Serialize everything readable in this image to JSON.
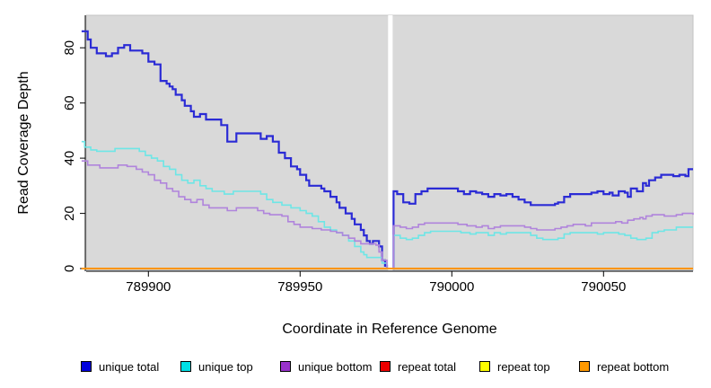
{
  "figure": {
    "background": "#FFFFFF",
    "plot_background": "#D9D9D9",
    "gap_band_color": "#FFFFFF",
    "axis_color": "#000000",
    "text_color": "#000000"
  },
  "chart_data": {
    "type": "line",
    "subtype": "step",
    "title": "",
    "xlabel": "Coordinate in Reference Genome",
    "ylabel": "Read Coverage Depth",
    "xlim": [
      789879.5,
      790079.5
    ],
    "ylim": [
      0,
      91.8
    ],
    "xticks": [
      789900,
      789950,
      790000,
      790050
    ],
    "yticks": [
      0,
      20,
      40,
      60,
      80
    ],
    "grid": false,
    "legend_position": "bottom",
    "gap_region": {
      "x_from": 789979,
      "x_to": 789980.5
    },
    "series": [
      {
        "name": "unique total",
        "color": "#2B2BD5",
        "legend_color": "#0000DC",
        "line_width": 2.2,
        "segments": [
          [
            [
              789878,
              86
            ],
            [
              789880,
              83
            ],
            [
              789881,
              80
            ],
            [
              789883,
              78
            ],
            [
              789886,
              77
            ],
            [
              789888,
              78
            ],
            [
              789890,
              80
            ],
            [
              789892,
              81
            ],
            [
              789894,
              79
            ],
            [
              789898,
              78
            ],
            [
              789900,
              75
            ],
            [
              789902,
              74
            ],
            [
              789904,
              68
            ],
            [
              789906,
              67
            ],
            [
              789907,
              66
            ],
            [
              789908,
              65
            ],
            [
              789909,
              63
            ],
            [
              789911,
              61
            ],
            [
              789912,
              59
            ],
            [
              789914,
              57
            ],
            [
              789915,
              55
            ],
            [
              789917,
              56
            ],
            [
              789919,
              54
            ],
            [
              789924,
              52
            ],
            [
              789926,
              46
            ],
            [
              789929,
              49
            ],
            [
              789937,
              47
            ],
            [
              789939,
              48
            ],
            [
              789941,
              46
            ],
            [
              789943,
              42
            ],
            [
              789945,
              40
            ],
            [
              789947,
              37
            ],
            [
              789949,
              36
            ],
            [
              789950,
              34
            ],
            [
              789952,
              32
            ],
            [
              789953,
              30
            ],
            [
              789957,
              29
            ],
            [
              789958,
              28
            ],
            [
              789960,
              26
            ],
            [
              789962,
              24
            ],
            [
              789963,
              22
            ],
            [
              789965,
              20
            ],
            [
              789967,
              18
            ],
            [
              789968,
              16
            ],
            [
              789970,
              14
            ],
            [
              789971,
              12
            ],
            [
              789972,
              10
            ],
            [
              789973,
              9
            ],
            [
              789974,
              10
            ],
            [
              789976,
              8
            ],
            [
              789977,
              3
            ],
            [
              789978,
              1
            ],
            [
              789978.6,
              0
            ]
          ],
          [
            [
              789980.6,
              0
            ],
            [
              789980.8,
              28
            ],
            [
              789982,
              27
            ],
            [
              789984,
              24
            ],
            [
              789986,
              23.5
            ],
            [
              789988,
              27
            ],
            [
              789990,
              28
            ],
            [
              789992,
              29
            ],
            [
              790002,
              28
            ],
            [
              790004,
              27
            ],
            [
              790006,
              28
            ],
            [
              790008,
              27.5
            ],
            [
              790010,
              27
            ],
            [
              790012,
              26
            ],
            [
              790014,
              27
            ],
            [
              790016,
              26.5
            ],
            [
              790018,
              27
            ],
            [
              790020,
              26
            ],
            [
              790022,
              25
            ],
            [
              790024,
              24
            ],
            [
              790026,
              23
            ],
            [
              790034,
              23.5
            ],
            [
              790035,
              24
            ],
            [
              790037,
              26
            ],
            [
              790039,
              27
            ],
            [
              790046,
              27.5
            ],
            [
              790048,
              28
            ],
            [
              790050,
              27
            ],
            [
              790052,
              27.5
            ],
            [
              790053,
              26.5
            ],
            [
              790055,
              28
            ],
            [
              790057,
              27.5
            ],
            [
              790058,
              26
            ],
            [
              790059,
              29
            ],
            [
              790061,
              28
            ],
            [
              790063,
              31
            ],
            [
              790064,
              30
            ],
            [
              790065,
              32
            ],
            [
              790067,
              33
            ],
            [
              790069,
              34
            ],
            [
              790073,
              33.5
            ],
            [
              790075,
              34
            ],
            [
              790077,
              33.5
            ],
            [
              790078,
              36
            ],
            [
              790079.5,
              36
            ]
          ]
        ]
      },
      {
        "name": "unique top",
        "color": "#6EE6E6",
        "legend_color": "#00E0E6",
        "line_width": 1.6,
        "segments": [
          [
            [
              789878,
              46
            ],
            [
              789879,
              44
            ],
            [
              789881,
              43
            ],
            [
              789883,
              42.5
            ],
            [
              789889,
              43.5
            ],
            [
              789897,
              42.5
            ],
            [
              789899,
              41
            ],
            [
              789901,
              40
            ],
            [
              789903,
              39
            ],
            [
              789905,
              37
            ],
            [
              789907,
              36
            ],
            [
              789909,
              34
            ],
            [
              789911,
              32
            ],
            [
              789913,
              31
            ],
            [
              789915,
              32
            ],
            [
              789917,
              30
            ],
            [
              789919,
              29
            ],
            [
              789921,
              28
            ],
            [
              789925,
              27
            ],
            [
              789928,
              28
            ],
            [
              789937,
              27
            ],
            [
              789939,
              25
            ],
            [
              789941,
              24
            ],
            [
              789944,
              23
            ],
            [
              789947,
              22
            ],
            [
              789950,
              21
            ],
            [
              789952,
              20
            ],
            [
              789954,
              19
            ],
            [
              789956,
              17
            ],
            [
              789958,
              15
            ],
            [
              789960,
              14
            ],
            [
              789962,
              13
            ],
            [
              789964,
              12
            ],
            [
              789966,
              10
            ],
            [
              789968,
              8
            ],
            [
              789970,
              6
            ],
            [
              789971,
              5
            ],
            [
              789972,
              4
            ],
            [
              789976,
              4
            ],
            [
              789977,
              2
            ],
            [
              789978.6,
              0
            ]
          ],
          [
            [
              789980.6,
              0
            ],
            [
              789980.8,
              12
            ],
            [
              789983,
              11
            ],
            [
              789985,
              10.5
            ],
            [
              789987,
              11
            ],
            [
              789989,
              12
            ],
            [
              789991,
              13
            ],
            [
              789993,
              13.5
            ],
            [
              790003,
              13
            ],
            [
              790006,
              12.5
            ],
            [
              790008,
              13
            ],
            [
              790012,
              12
            ],
            [
              790014,
              13
            ],
            [
              790016,
              12.5
            ],
            [
              790018,
              13
            ],
            [
              790026,
              12
            ],
            [
              790028,
              11
            ],
            [
              790030,
              10.5
            ],
            [
              790035,
              11
            ],
            [
              790037,
              12.5
            ],
            [
              790039,
              13
            ],
            [
              790048,
              12.5
            ],
            [
              790050,
              13
            ],
            [
              790055,
              12.5
            ],
            [
              790057,
              12
            ],
            [
              790059,
              11
            ],
            [
              790061,
              10.5
            ],
            [
              790064,
              11
            ],
            [
              790066,
              13
            ],
            [
              790068,
              13.5
            ],
            [
              790070,
              14
            ],
            [
              790074,
              15
            ],
            [
              790079.5,
              15
            ]
          ]
        ]
      },
      {
        "name": "unique bottom",
        "color": "#B084DC",
        "legend_color": "#9933CC",
        "line_width": 1.6,
        "segments": [
          [
            [
              789878,
              39
            ],
            [
              789880,
              37.5
            ],
            [
              789884,
              36.5
            ],
            [
              789890,
              37.5
            ],
            [
              789893,
              37
            ],
            [
              789896,
              36
            ],
            [
              789898,
              35
            ],
            [
              789900,
              34
            ],
            [
              789902,
              32
            ],
            [
              789904,
              31
            ],
            [
              789906,
              29
            ],
            [
              789908,
              28
            ],
            [
              789910,
              26
            ],
            [
              789912,
              25
            ],
            [
              789914,
              24
            ],
            [
              789916,
              25
            ],
            [
              789918,
              23
            ],
            [
              789920,
              22
            ],
            [
              789926,
              21
            ],
            [
              789929,
              22
            ],
            [
              789936,
              21
            ],
            [
              789938,
              20
            ],
            [
              789940,
              19.5
            ],
            [
              789944,
              19
            ],
            [
              789946,
              17
            ],
            [
              789948,
              16
            ],
            [
              789950,
              15
            ],
            [
              789954,
              14.5
            ],
            [
              789957,
              14
            ],
            [
              789960,
              13.5
            ],
            [
              789962,
              13
            ],
            [
              789964,
              12
            ],
            [
              789966,
              11
            ],
            [
              789968,
              10
            ],
            [
              789970,
              9
            ],
            [
              789975,
              8.5
            ],
            [
              789976,
              6
            ],
            [
              789977,
              3
            ],
            [
              789978.6,
              0
            ]
          ],
          [
            [
              789980.6,
              0
            ],
            [
              789980.8,
              15.5
            ],
            [
              789983,
              15
            ],
            [
              789985,
              14.5
            ],
            [
              789987,
              15
            ],
            [
              789989,
              16
            ],
            [
              789991,
              16.5
            ],
            [
              790002,
              16
            ],
            [
              790005,
              15.5
            ],
            [
              790008,
              15
            ],
            [
              790010,
              15.5
            ],
            [
              790012,
              14.5
            ],
            [
              790014,
              15
            ],
            [
              790016,
              15.5
            ],
            [
              790024,
              15
            ],
            [
              790026,
              14.5
            ],
            [
              790028,
              14
            ],
            [
              790034,
              14.5
            ],
            [
              790036,
              15
            ],
            [
              790038,
              15.5
            ],
            [
              790040,
              16
            ],
            [
              790044,
              15.5
            ],
            [
              790046,
              16.5
            ],
            [
              790052,
              16.5
            ],
            [
              790054,
              17
            ],
            [
              790056,
              16.5
            ],
            [
              790058,
              17.5
            ],
            [
              790060,
              18
            ],
            [
              790062,
              18.5
            ],
            [
              790063,
              18
            ],
            [
              790064,
              19
            ],
            [
              790066,
              19.5
            ],
            [
              790070,
              19
            ],
            [
              790074,
              19.5
            ],
            [
              790076,
              20
            ],
            [
              790079.5,
              19.5
            ]
          ]
        ]
      },
      {
        "name": "repeat total",
        "color": "#E00000",
        "legend_color": "#EE0000",
        "line_width": 2,
        "segments": [
          [
            [
              789878,
              0
            ],
            [
              789978.6,
              0
            ]
          ],
          [
            [
              789980.6,
              0
            ],
            [
              790079.5,
              0
            ]
          ]
        ]
      },
      {
        "name": "repeat top",
        "color": "#FFFF00",
        "legend_color": "#FFFF00",
        "line_width": 2,
        "segments": [
          [
            [
              789878,
              0
            ],
            [
              789978.6,
              0
            ]
          ],
          [
            [
              789980.6,
              0
            ],
            [
              790079.5,
              0
            ]
          ]
        ]
      },
      {
        "name": "repeat bottom",
        "color": "#FF9400",
        "legend_color": "#FF9900",
        "line_width": 2,
        "segments": [
          [
            [
              789878,
              0
            ],
            [
              790079.5,
              0
            ]
          ]
        ]
      }
    ]
  }
}
